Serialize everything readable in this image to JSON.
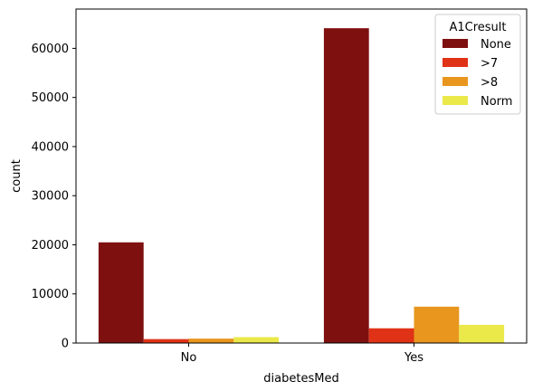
{
  "chart_data": {
    "type": "bar",
    "xlabel": "diabetesMed",
    "ylabel": "count",
    "categories": [
      "No",
      "Yes"
    ],
    "ylim": [
      0,
      68000
    ],
    "yticks": [
      0,
      10000,
      20000,
      30000,
      40000,
      50000,
      60000
    ],
    "ytick_labels": [
      "0",
      "10000",
      "20000",
      "30000",
      "40000",
      "50000",
      "60000"
    ],
    "legend": {
      "title": "A1Cresult",
      "placement": "top-right"
    },
    "series": [
      {
        "name": "None",
        "color": "#7f1010",
        "values": [
          20500,
          64100
        ]
      },
      {
        "name": ">7",
        "color": "#e03217",
        "values": [
          800,
          3000
        ]
      },
      {
        "name": ">8",
        "color": "#e8961e",
        "values": [
          900,
          7400
        ]
      },
      {
        "name": "Norm",
        "color": "#ebe84a",
        "values": [
          1200,
          3700
        ]
      }
    ]
  }
}
